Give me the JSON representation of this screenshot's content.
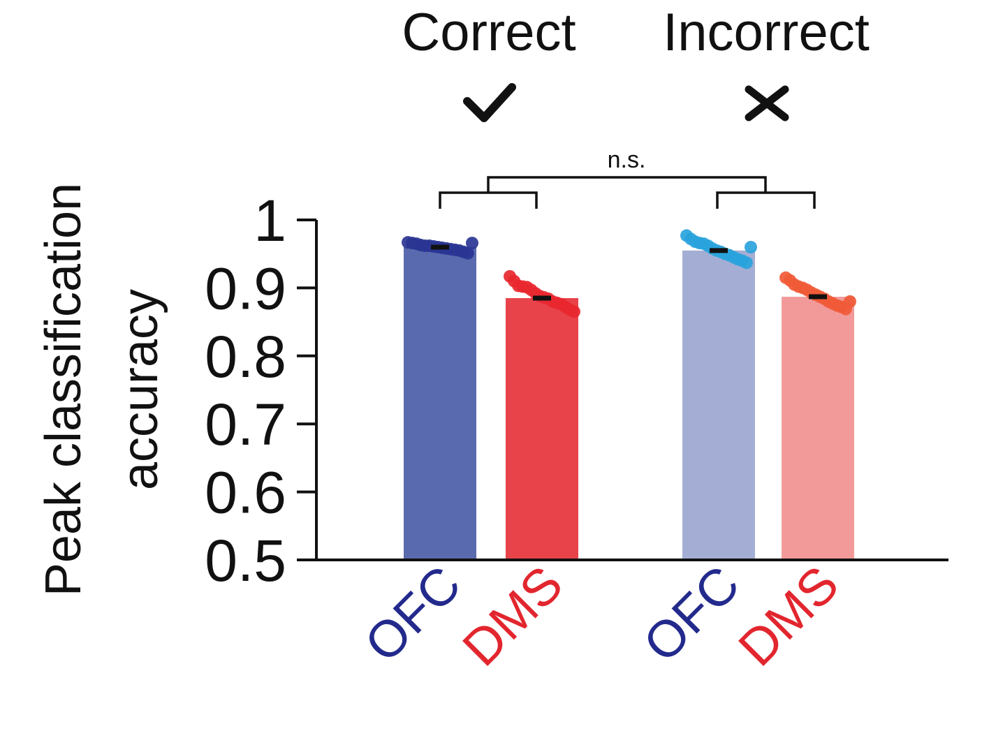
{
  "chart_data": {
    "type": "bar",
    "title": "",
    "xlabel": "",
    "ylabel": "Peak classification accuracy",
    "ylim": [
      0.5,
      1.0
    ],
    "yticks": [
      0.5,
      0.6,
      0.7,
      0.8,
      0.9,
      1.0
    ],
    "ytick_labels": [
      "0.5",
      "0.6",
      "0.7",
      "0.8",
      "0.9",
      "1"
    ],
    "groups": [
      {
        "label": "Correct",
        "symbol": "✓",
        "symbol_name": "checkmark-icon"
      },
      {
        "label": "Incorrect",
        "symbol": "✕",
        "symbol_name": "cross-icon"
      }
    ],
    "categories": [
      "OFC",
      "DMS",
      "OFC",
      "DMS"
    ],
    "category_groups": [
      "Correct",
      "Correct",
      "Incorrect",
      "Incorrect"
    ],
    "values": [
      0.96,
      0.885,
      0.955,
      0.887
    ],
    "bar_colors": [
      "#5a6aae",
      "#e8434b",
      "#a4aed4",
      "#f29a9a"
    ],
    "point_colors": [
      "#2a3592",
      "#e8272f",
      "#29a3dc",
      "#f05a37"
    ],
    "label_colors": [
      "#232a8c",
      "#e2262e",
      "#232a8c",
      "#e2262e"
    ],
    "points": [
      [
        0.967,
        0.966,
        0.965,
        0.963,
        0.962,
        0.962,
        0.961,
        0.96,
        0.959,
        0.958,
        0.957,
        0.956,
        0.955,
        0.953,
        0.951,
        0.966
      ],
      [
        0.917,
        0.91,
        0.903,
        0.902,
        0.901,
        0.897,
        0.892,
        0.888,
        0.886,
        0.884,
        0.88,
        0.878,
        0.876,
        0.872,
        0.868,
        0.865
      ],
      [
        0.977,
        0.972,
        0.968,
        0.966,
        0.965,
        0.962,
        0.958,
        0.955,
        0.953,
        0.95,
        0.948,
        0.945,
        0.942,
        0.94,
        0.937,
        0.96
      ],
      [
        0.915,
        0.911,
        0.905,
        0.902,
        0.9,
        0.897,
        0.893,
        0.89,
        0.887,
        0.884,
        0.88,
        0.877,
        0.874,
        0.872,
        0.869,
        0.88
      ]
    ],
    "annotations": [
      "n.s."
    ]
  }
}
